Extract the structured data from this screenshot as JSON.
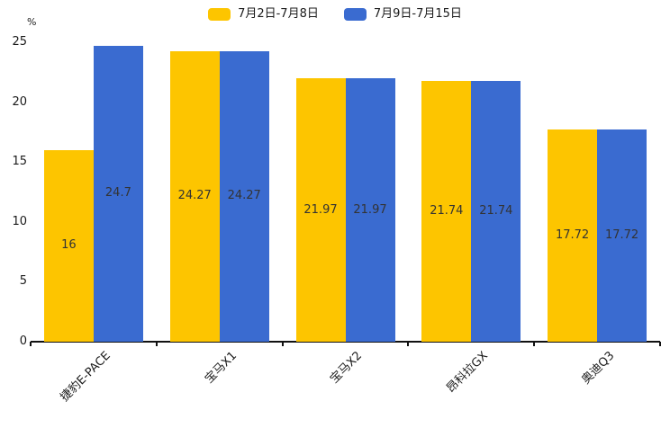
{
  "chart_data": {
    "type": "bar",
    "title": "",
    "ylabel": "%",
    "categories": [
      "捷豹E-PACE",
      "宝马X1",
      "宝马X2",
      "昂科拉GX",
      "奥迪Q3"
    ],
    "series": [
      {
        "name": "7月2日-7月8日",
        "color": "#FDC500",
        "values": [
          16,
          24.27,
          21.97,
          21.74,
          17.72
        ]
      },
      {
        "name": "7月9日-7月15日",
        "color": "#3A6BD0",
        "values": [
          24.7,
          24.27,
          21.97,
          21.74,
          17.72
        ]
      }
    ],
    "yticks": [
      0,
      5,
      10,
      15,
      20,
      25
    ],
    "ylim": [
      0,
      25
    ],
    "grid": false,
    "legend_position": "top-center",
    "value_label_color": "#333333",
    "axis_color": "#111111"
  }
}
